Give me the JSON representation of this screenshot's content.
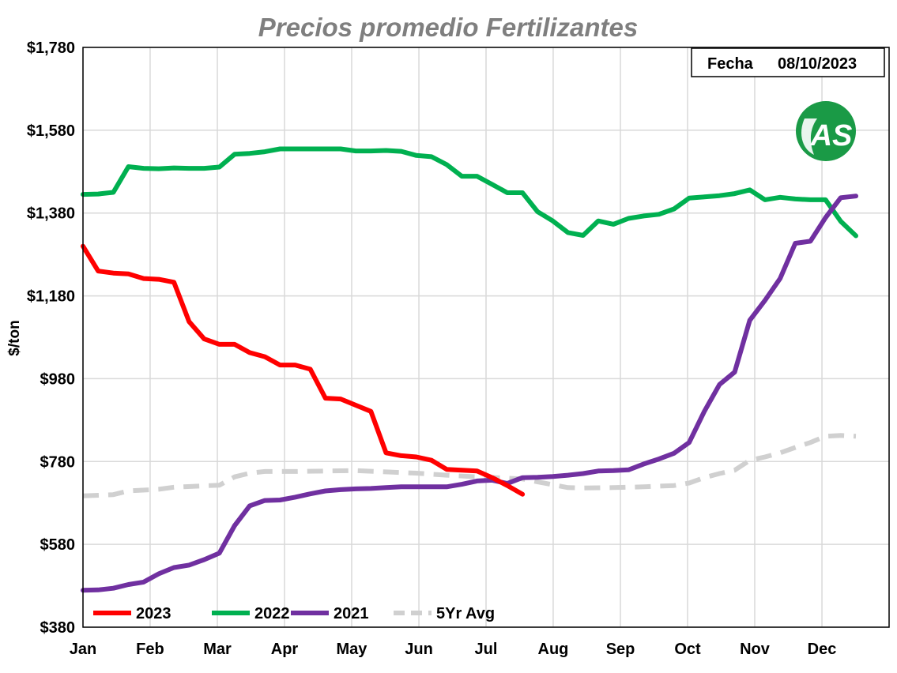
{
  "chart_data": {
    "type": "line",
    "title": "Precios promedio Fertilizantes",
    "ylabel": "$/ton",
    "xlabel": "",
    "ylim": [
      380,
      1780
    ],
    "yticks": [
      380,
      580,
      780,
      980,
      1180,
      1380,
      1580,
      1780
    ],
    "ytick_labels": [
      "$380",
      "$580",
      "$780",
      "$980",
      "$1,180",
      "$1,380",
      "$1,580",
      "$1,780"
    ],
    "x_range": [
      0,
      1
    ],
    "months": [
      "Jan",
      "Feb",
      "Mar",
      "Apr",
      "May",
      "Jun",
      "Jul",
      "Aug",
      "Sep",
      "Oct",
      "Nov",
      "Dec"
    ],
    "month_positions": [
      0,
      0.0833,
      0.1667,
      0.25,
      0.3333,
      0.4167,
      0.5,
      0.5833,
      0.6667,
      0.75,
      0.8333,
      0.9167
    ],
    "grid": true,
    "legend_position": "bottom-left",
    "series": [
      {
        "name": "2023",
        "color": "#ff0000",
        "dashed": false,
        "points": [
          [
            0,
            1300
          ],
          [
            0.0188,
            1240
          ],
          [
            0.0376,
            1235
          ],
          [
            0.0564,
            1233
          ],
          [
            0.0752,
            1222
          ],
          [
            0.094,
            1220
          ],
          [
            0.1128,
            1213
          ],
          [
            0.1316,
            1118
          ],
          [
            0.1504,
            1076
          ],
          [
            0.1692,
            1063
          ],
          [
            0.188,
            1063
          ],
          [
            0.2068,
            1043
          ],
          [
            0.2256,
            1033
          ],
          [
            0.2444,
            1013
          ],
          [
            0.2632,
            1013
          ],
          [
            0.282,
            1003
          ],
          [
            0.3008,
            933
          ],
          [
            0.3196,
            931
          ],
          [
            0.3384,
            916
          ],
          [
            0.3572,
            901
          ],
          [
            0.376,
            801
          ],
          [
            0.3948,
            794
          ],
          [
            0.4136,
            791
          ],
          [
            0.4324,
            783
          ],
          [
            0.4512,
            761
          ],
          [
            0.47,
            759
          ],
          [
            0.4888,
            757
          ],
          [
            0.5076,
            741
          ],
          [
            0.5264,
            722
          ],
          [
            0.5452,
            701
          ]
        ]
      },
      {
        "name": "2022",
        "color": "#00b050",
        "dashed": false,
        "points": [
          [
            0,
            1425
          ],
          [
            0.0188,
            1426
          ],
          [
            0.0376,
            1430
          ],
          [
            0.0564,
            1492
          ],
          [
            0.0752,
            1488
          ],
          [
            0.094,
            1487
          ],
          [
            0.1128,
            1489
          ],
          [
            0.1316,
            1488
          ],
          [
            0.1504,
            1488
          ],
          [
            0.1692,
            1491
          ],
          [
            0.188,
            1522
          ],
          [
            0.2068,
            1524
          ],
          [
            0.2256,
            1528
          ],
          [
            0.2444,
            1535
          ],
          [
            0.2632,
            1535
          ],
          [
            0.282,
            1535
          ],
          [
            0.3008,
            1535
          ],
          [
            0.3196,
            1535
          ],
          [
            0.3384,
            1530
          ],
          [
            0.3572,
            1530
          ],
          [
            0.376,
            1531
          ],
          [
            0.3948,
            1529
          ],
          [
            0.4136,
            1519
          ],
          [
            0.4324,
            1516
          ],
          [
            0.4512,
            1497
          ],
          [
            0.47,
            1469
          ],
          [
            0.4888,
            1469
          ],
          [
            0.5076,
            1449
          ],
          [
            0.5264,
            1429
          ],
          [
            0.5452,
            1429
          ],
          [
            0.564,
            1383
          ],
          [
            0.5828,
            1361
          ],
          [
            0.6016,
            1333
          ],
          [
            0.6204,
            1326
          ],
          [
            0.6392,
            1361
          ],
          [
            0.658,
            1353
          ],
          [
            0.6768,
            1367
          ],
          [
            0.6956,
            1373
          ],
          [
            0.7144,
            1377
          ],
          [
            0.7332,
            1390
          ],
          [
            0.752,
            1416
          ],
          [
            0.7708,
            1419
          ],
          [
            0.7896,
            1422
          ],
          [
            0.8084,
            1427
          ],
          [
            0.8272,
            1436
          ],
          [
            0.846,
            1412
          ],
          [
            0.8648,
            1418
          ],
          [
            0.8836,
            1414
          ],
          [
            0.9024,
            1412
          ],
          [
            0.9212,
            1412
          ],
          [
            0.94,
            1360
          ],
          [
            0.9588,
            1325
          ]
        ]
      },
      {
        "name": "2021",
        "color": "#7030a0",
        "dashed": false,
        "points": [
          [
            0,
            469
          ],
          [
            0.0188,
            470
          ],
          [
            0.0376,
            474
          ],
          [
            0.0564,
            483
          ],
          [
            0.0752,
            489
          ],
          [
            0.094,
            509
          ],
          [
            0.1128,
            524
          ],
          [
            0.1316,
            530
          ],
          [
            0.1504,
            543
          ],
          [
            0.1692,
            559
          ],
          [
            0.188,
            625
          ],
          [
            0.2068,
            673
          ],
          [
            0.2256,
            686
          ],
          [
            0.2444,
            687
          ],
          [
            0.2632,
            694
          ],
          [
            0.282,
            702
          ],
          [
            0.3008,
            709
          ],
          [
            0.3196,
            712
          ],
          [
            0.3384,
            714
          ],
          [
            0.3572,
            715
          ],
          [
            0.376,
            717
          ],
          [
            0.3948,
            719
          ],
          [
            0.4136,
            719
          ],
          [
            0.4324,
            719
          ],
          [
            0.4512,
            719
          ],
          [
            0.47,
            725
          ],
          [
            0.4888,
            733
          ],
          [
            0.5076,
            735
          ],
          [
            0.5264,
            727
          ],
          [
            0.5452,
            741
          ],
          [
            0.564,
            742
          ],
          [
            0.5828,
            744
          ],
          [
            0.6016,
            747
          ],
          [
            0.6204,
            751
          ],
          [
            0.6392,
            757
          ],
          [
            0.658,
            758
          ],
          [
            0.6768,
            760
          ],
          [
            0.6956,
            774
          ],
          [
            0.7144,
            786
          ],
          [
            0.7332,
            800
          ],
          [
            0.752,
            826
          ],
          [
            0.7708,
            901
          ],
          [
            0.7896,
            966
          ],
          [
            0.8084,
            996
          ],
          [
            0.8272,
            1121
          ],
          [
            0.846,
            1169
          ],
          [
            0.8648,
            1222
          ],
          [
            0.8836,
            1307
          ],
          [
            0.9024,
            1312
          ],
          [
            0.9212,
            1369
          ],
          [
            0.94,
            1417
          ],
          [
            0.9588,
            1421
          ]
        ]
      },
      {
        "name": "5Yr Avg",
        "color": "#d0d0d0",
        "dashed": true,
        "points": [
          [
            0,
            697
          ],
          [
            0.0376,
            700
          ],
          [
            0.0564,
            709
          ],
          [
            0.094,
            713
          ],
          [
            0.1128,
            718
          ],
          [
            0.1692,
            723
          ],
          [
            0.188,
            743
          ],
          [
            0.2068,
            752
          ],
          [
            0.2256,
            756
          ],
          [
            0.2632,
            756
          ],
          [
            0.3008,
            757
          ],
          [
            0.3384,
            758
          ],
          [
            0.376,
            755
          ],
          [
            0.4136,
            752
          ],
          [
            0.4512,
            747
          ],
          [
            0.4888,
            743
          ],
          [
            0.5264,
            740
          ],
          [
            0.5452,
            738
          ],
          [
            0.564,
            731
          ],
          [
            0.5828,
            724
          ],
          [
            0.6016,
            717
          ],
          [
            0.6204,
            716
          ],
          [
            0.658,
            717
          ],
          [
            0.6956,
            719
          ],
          [
            0.7332,
            722
          ],
          [
            0.752,
            728
          ],
          [
            0.7708,
            741
          ],
          [
            0.7896,
            751
          ],
          [
            0.8084,
            759
          ],
          [
            0.8272,
            783
          ],
          [
            0.846,
            791
          ],
          [
            0.8648,
            801
          ],
          [
            0.8836,
            814
          ],
          [
            0.9024,
            826
          ],
          [
            0.9212,
            841
          ],
          [
            0.94,
            843
          ],
          [
            0.9588,
            841
          ]
        ]
      }
    ]
  },
  "date_box": {
    "label": "Fecha",
    "value": "08/10/2023"
  },
  "logo": {
    "text": "AS",
    "color": "#1a9a46"
  }
}
